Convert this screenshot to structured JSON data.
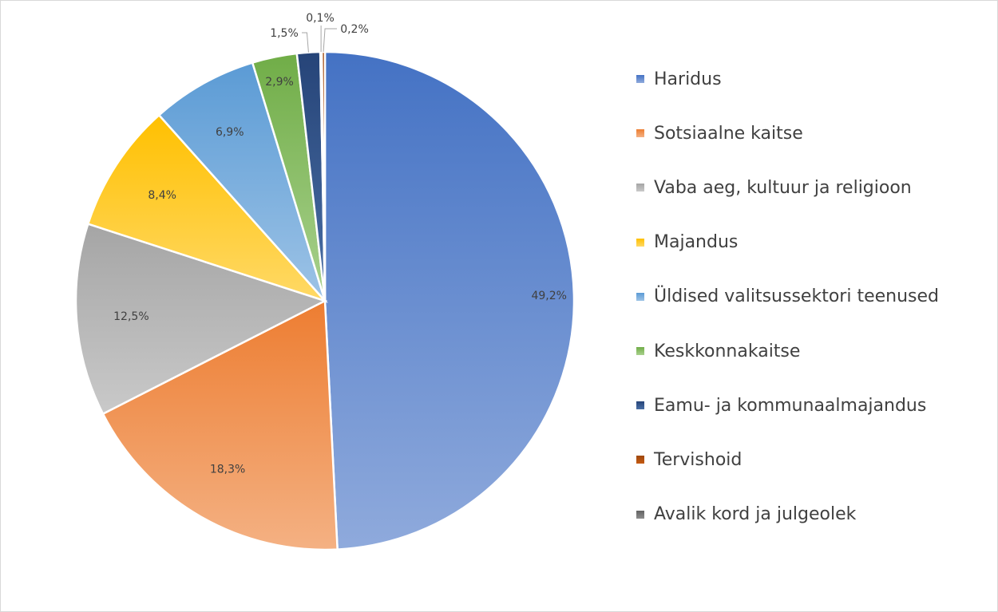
{
  "chart_data": {
    "type": "pie",
    "categories": [
      "Haridus",
      "Sotsiaalne kaitse",
      "Vaba aeg, kultuur ja religioon",
      "Majandus",
      "Üldised valitsussektori teenused",
      "Keskkonnakaitse",
      "Eamu- ja kommunaalmajandus",
      "Tervishoid",
      "Avalik kord ja julgeolek"
    ],
    "values": [
      49.2,
      18.3,
      12.5,
      8.4,
      6.9,
      2.9,
      1.5,
      0.2,
      0.1
    ],
    "data_labels": [
      "49,2%",
      "18,3%",
      "12,5%",
      "8,4%",
      "6,9%",
      "2,9%",
      "1,5%",
      "0,2%",
      "0,1%"
    ],
    "colors": [
      "#4472c4",
      "#ed7d31",
      "#a5a5a5",
      "#ffc000",
      "#5b9bd5",
      "#70ad47",
      "#264478",
      "#9e480e",
      "#636363"
    ],
    "colors_light": [
      "#8faadc",
      "#f4b183",
      "#c9c9c9",
      "#ffd966",
      "#9dc3e6",
      "#a9d18e",
      "#4a6fa5",
      "#c55a11",
      "#8c8c8c"
    ],
    "legend_position": "right",
    "title": "",
    "start_angle_deg": 0,
    "direction": "clockwise"
  }
}
